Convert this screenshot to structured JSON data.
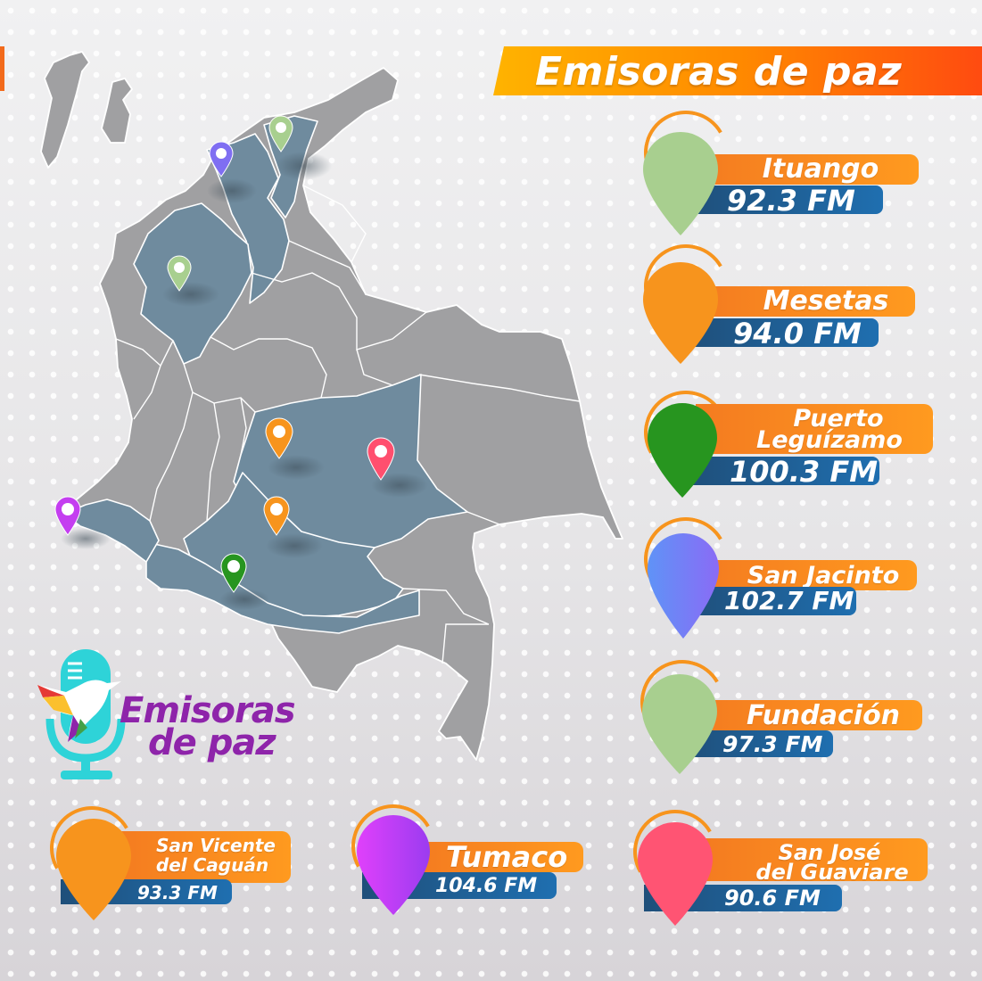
{
  "title": "Emisoras de paz",
  "logo": {
    "line1": "Emisoras",
    "line2": "de paz"
  },
  "stations": [
    {
      "name": "Ituango",
      "frequency": "92.3 FM",
      "pin_color": "#a8cf8f"
    },
    {
      "name": "Mesetas",
      "frequency": "94.0 FM",
      "pin_color": "#f7941d"
    },
    {
      "name_line1": "Puerto",
      "name_line2": "Leguízamo",
      "frequency": "100.3 FM",
      "pin_color": "#27951f"
    },
    {
      "name": "San Jacinto",
      "frequency": "102.7 FM",
      "pin_color": "#6f74f5"
    },
    {
      "name": "Fundación",
      "frequency": "97.3 FM",
      "pin_color": "#a8cf8f"
    },
    {
      "name_line1": "San Vicente",
      "name_line2": "del Caguán",
      "frequency": "93.3 FM",
      "pin_color": "#f7941d"
    },
    {
      "name": "Tumaco",
      "frequency": "104.6 FM",
      "pin_color": "#c43ef0"
    },
    {
      "name_line1": "San José",
      "name_line2": "del Guaviare",
      "frequency": "90.6 FM",
      "pin_color": "#ff4f6e"
    }
  ]
}
